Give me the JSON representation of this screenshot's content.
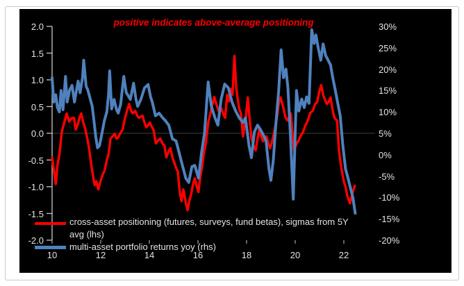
{
  "chart_data": {
    "type": "line",
    "title": "positive indicates above-average positioning",
    "title_color": "#ff0000",
    "background": "#000000",
    "legend_position": "bottom-left",
    "grid": "single horizontal gridline at left-axis 0.0",
    "x_axis": {
      "ticks": [
        10,
        12,
        14,
        16,
        18,
        20,
        22
      ],
      "range": [
        10,
        23.3
      ]
    },
    "left_axis": {
      "ticks": [
        2.0,
        1.5,
        1.0,
        0.5,
        0.0,
        -0.5,
        -1.0,
        -1.5,
        -2.0
      ],
      "range": [
        -2.0,
        2.0
      ],
      "unit": "sigma"
    },
    "right_axis": {
      "ticks": [
        30,
        25,
        20,
        15,
        10,
        5,
        0,
        -5,
        -10,
        -15,
        -20
      ],
      "range": [
        -20,
        30
      ],
      "unit": "%"
    },
    "series": [
      {
        "name": "cross-asset positioning (futures, surveys, fund betas), sigmas from 5Y avg (lhs)",
        "axis": "left",
        "color": "#ff0000",
        "points": [
          [
            10.0,
            -0.45
          ],
          [
            10.08,
            -0.72
          ],
          [
            10.15,
            -0.95
          ],
          [
            10.22,
            -0.6
          ],
          [
            10.3,
            -0.4
          ],
          [
            10.4,
            0.03
          ],
          [
            10.5,
            0.2
          ],
          [
            10.6,
            0.37
          ],
          [
            10.7,
            0.22
          ],
          [
            10.8,
            0.28
          ],
          [
            10.9,
            0.29
          ],
          [
            10.97,
            0.07
          ],
          [
            11.05,
            0.16
          ],
          [
            11.13,
            0.3
          ],
          [
            11.2,
            0.37
          ],
          [
            11.28,
            0.2
          ],
          [
            11.35,
            0.11
          ],
          [
            11.45,
            -0.1
          ],
          [
            11.52,
            -0.28
          ],
          [
            11.62,
            -0.62
          ],
          [
            11.75,
            -0.97
          ],
          [
            11.82,
            -0.9
          ],
          [
            11.9,
            -1.05
          ],
          [
            12.0,
            -0.88
          ],
          [
            12.1,
            -0.75
          ],
          [
            12.15,
            -0.71
          ],
          [
            12.25,
            -0.5
          ],
          [
            12.32,
            -0.4
          ],
          [
            12.4,
            -0.1
          ],
          [
            12.5,
            -0.05
          ],
          [
            12.57,
            -0.01
          ],
          [
            12.65,
            -0.1
          ],
          [
            12.72,
            -0.08
          ],
          [
            12.8,
            0.0
          ],
          [
            12.9,
            0.07
          ],
          [
            13.0,
            0.29
          ],
          [
            13.1,
            0.45
          ],
          [
            13.17,
            0.55
          ],
          [
            13.25,
            0.42
          ],
          [
            13.32,
            0.37
          ],
          [
            13.42,
            0.42
          ],
          [
            13.5,
            0.33
          ],
          [
            13.57,
            0.29
          ],
          [
            13.65,
            0.31
          ],
          [
            13.72,
            0.33
          ],
          [
            13.8,
            0.2
          ],
          [
            13.87,
            0.11
          ],
          [
            13.95,
            0.15
          ],
          [
            14.02,
            0.2
          ],
          [
            14.1,
            0.12
          ],
          [
            14.17,
            0.07
          ],
          [
            14.27,
            -0.19
          ],
          [
            14.37,
            -0.13
          ],
          [
            14.45,
            -0.1
          ],
          [
            14.55,
            -0.2
          ],
          [
            14.62,
            -0.23
          ],
          [
            14.7,
            -0.45
          ],
          [
            14.8,
            -0.33
          ],
          [
            14.87,
            -0.28
          ],
          [
            14.95,
            -0.45
          ],
          [
            15.02,
            -0.54
          ],
          [
            15.1,
            -0.65
          ],
          [
            15.17,
            -0.71
          ],
          [
            15.25,
            -1.1
          ],
          [
            15.32,
            -1.27
          ],
          [
            15.4,
            -1.05
          ],
          [
            15.5,
            -1.3
          ],
          [
            15.57,
            -1.44
          ],
          [
            15.65,
            -1.25
          ],
          [
            15.72,
            -1.14
          ],
          [
            15.8,
            -0.95
          ],
          [
            15.87,
            -0.84
          ],
          [
            15.95,
            -1.0
          ],
          [
            16.02,
            -1.1
          ],
          [
            16.1,
            -0.8
          ],
          [
            16.17,
            -0.62
          ],
          [
            16.25,
            -0.35
          ],
          [
            16.32,
            -0.2
          ],
          [
            16.42,
            0.2
          ],
          [
            16.5,
            0.35
          ],
          [
            16.57,
            0.5
          ],
          [
            16.67,
            0.68
          ],
          [
            16.75,
            0.55
          ],
          [
            16.85,
            0.42
          ],
          [
            16.95,
            0.47
          ],
          [
            17.05,
            0.35
          ],
          [
            17.12,
            0.29
          ],
          [
            17.2,
            0.72
          ],
          [
            17.27,
            0.6
          ],
          [
            17.35,
            0.83
          ],
          [
            17.42,
            0.72
          ],
          [
            17.5,
            1.45
          ],
          [
            17.57,
            0.9
          ],
          [
            17.62,
            0.68
          ],
          [
            17.7,
            0.45
          ],
          [
            17.77,
            0.37
          ],
          [
            17.85,
            -0.06
          ],
          [
            17.9,
            0.1
          ],
          [
            17.97,
            0.3
          ],
          [
            18.05,
            0.67
          ],
          [
            18.12,
            0.3
          ],
          [
            18.2,
            -0.1
          ],
          [
            18.3,
            -0.25
          ],
          [
            18.37,
            -0.32
          ],
          [
            18.45,
            -0.1
          ],
          [
            18.52,
            0.07
          ],
          [
            18.6,
            -0.05
          ],
          [
            18.67,
            -0.15
          ],
          [
            18.75,
            -0.1
          ],
          [
            18.82,
            -0.06
          ],
          [
            18.9,
            -0.2
          ],
          [
            18.97,
            -0.28
          ],
          [
            19.05,
            -0.15
          ],
          [
            19.15,
            0.05
          ],
          [
            19.25,
            0.3
          ],
          [
            19.32,
            0.55
          ],
          [
            19.4,
            0.67
          ],
          [
            19.5,
            0.5
          ],
          [
            19.6,
            0.3
          ],
          [
            19.67,
            0.24
          ],
          [
            19.75,
            0.3
          ],
          [
            19.82,
            0.37
          ],
          [
            19.9,
            -0.1
          ],
          [
            19.95,
            -0.32
          ],
          [
            20.05,
            -0.2
          ],
          [
            20.12,
            -0.15
          ],
          [
            20.22,
            -0.05
          ],
          [
            20.32,
            0.02
          ],
          [
            20.42,
            0.15
          ],
          [
            20.52,
            0.24
          ],
          [
            20.62,
            0.38
          ],
          [
            20.72,
            0.42
          ],
          [
            20.82,
            0.55
          ],
          [
            20.9,
            0.58
          ],
          [
            21.0,
            0.8
          ],
          [
            21.07,
            0.9
          ],
          [
            21.15,
            0.72
          ],
          [
            21.22,
            0.63
          ],
          [
            21.3,
            0.55
          ],
          [
            21.37,
            0.58
          ],
          [
            21.45,
            0.67
          ],
          [
            21.55,
            0.4
          ],
          [
            21.62,
            0.28
          ],
          [
            21.72,
            0.24
          ],
          [
            21.8,
            -0.32
          ],
          [
            21.9,
            -0.66
          ],
          [
            22.0,
            -0.9
          ],
          [
            22.07,
            -1.0
          ],
          [
            22.15,
            -1.18
          ],
          [
            22.25,
            -1.31
          ],
          [
            22.32,
            -1.18
          ],
          [
            22.37,
            -1.1
          ],
          [
            22.45,
            -0.98
          ]
        ]
      },
      {
        "name": "multi-asset portfolio returns yoy (rhs)",
        "axis": "right",
        "color": "#4f81bd",
        "points": [
          [
            10.0,
            18
          ],
          [
            10.07,
            12.3
          ],
          [
            10.15,
            14
          ],
          [
            10.22,
            11
          ],
          [
            10.3,
            10
          ],
          [
            10.37,
            15
          ],
          [
            10.45,
            10.5
          ],
          [
            10.55,
            18.3
          ],
          [
            10.62,
            12.3
          ],
          [
            10.72,
            15.1
          ],
          [
            10.82,
            16.2
          ],
          [
            10.92,
            12.3
          ],
          [
            11.0,
            15
          ],
          [
            11.07,
            17.2
          ],
          [
            11.15,
            14.5
          ],
          [
            11.25,
            18
          ],
          [
            11.3,
            22.1
          ],
          [
            11.4,
            16
          ],
          [
            11.47,
            15.1
          ],
          [
            11.55,
            13.4
          ],
          [
            11.65,
            11.3
          ],
          [
            11.72,
            8
          ],
          [
            11.8,
            4
          ],
          [
            11.87,
            1.6
          ],
          [
            11.95,
            2.1
          ],
          [
            12.05,
            5
          ],
          [
            12.15,
            8
          ],
          [
            12.25,
            10
          ],
          [
            12.32,
            14
          ],
          [
            12.37,
            19.6
          ],
          [
            12.45,
            10.7
          ],
          [
            12.55,
            12.9
          ],
          [
            12.65,
            10.5
          ],
          [
            12.72,
            9.7
          ],
          [
            12.82,
            11.8
          ],
          [
            12.95,
            18.3
          ],
          [
            13.05,
            14.5
          ],
          [
            13.12,
            13.9
          ],
          [
            13.22,
            12.9
          ],
          [
            13.35,
            16.7
          ],
          [
            13.45,
            13
          ],
          [
            13.52,
            11.3
          ],
          [
            13.65,
            12.9
          ],
          [
            13.8,
            15.6
          ],
          [
            13.95,
            16.4
          ],
          [
            14.05,
            13.5
          ],
          [
            14.12,
            12.3
          ],
          [
            14.25,
            9.1
          ],
          [
            14.4,
            9.7
          ],
          [
            14.55,
            8.6
          ],
          [
            14.65,
            8
          ],
          [
            14.8,
            6.9
          ],
          [
            14.95,
            3.7
          ],
          [
            15.1,
            3.2
          ],
          [
            15.2,
            1
          ],
          [
            15.35,
            -2.3
          ],
          [
            15.5,
            -5.5
          ],
          [
            15.62,
            -6.5
          ],
          [
            15.75,
            -2.8
          ],
          [
            15.87,
            -2.5
          ],
          [
            16.02,
            -5.5
          ],
          [
            16.15,
            0.5
          ],
          [
            16.27,
            5
          ],
          [
            16.42,
            17
          ],
          [
            16.55,
            11.3
          ],
          [
            16.7,
            8.6
          ],
          [
            16.82,
            6.9
          ],
          [
            16.95,
            12.9
          ],
          [
            17.1,
            16.5
          ],
          [
            17.25,
            15.6
          ],
          [
            17.4,
            12.3
          ],
          [
            17.55,
            10.2
          ],
          [
            17.7,
            8.6
          ],
          [
            17.85,
            7.5
          ],
          [
            17.95,
            8.6
          ],
          [
            18.1,
            2.1
          ],
          [
            18.2,
            -0.7
          ],
          [
            18.32,
            5.3
          ],
          [
            18.45,
            6.9
          ],
          [
            18.57,
            5.9
          ],
          [
            18.7,
            4.5
          ],
          [
            18.8,
            3.2
          ],
          [
            18.92,
            -3.3
          ],
          [
            19.0,
            -6
          ],
          [
            19.1,
            -1.2
          ],
          [
            19.2,
            6.9
          ],
          [
            19.32,
            15
          ],
          [
            19.42,
            24.5
          ],
          [
            19.52,
            18
          ],
          [
            19.62,
            20
          ],
          [
            19.7,
            15.6
          ],
          [
            19.8,
            4.8
          ],
          [
            19.92,
            -10.4
          ],
          [
            20.05,
            15
          ],
          [
            20.15,
            10.2
          ],
          [
            20.27,
            13
          ],
          [
            20.37,
            11
          ],
          [
            20.47,
            13.5
          ],
          [
            20.57,
            12
          ],
          [
            20.68,
            29.2
          ],
          [
            20.78,
            26
          ],
          [
            20.85,
            28
          ],
          [
            20.95,
            24.8
          ],
          [
            21.05,
            22.1
          ],
          [
            21.15,
            25.9
          ],
          [
            21.25,
            23.2
          ],
          [
            21.35,
            22.1
          ],
          [
            21.45,
            21
          ],
          [
            21.55,
            17.8
          ],
          [
            21.65,
            15.1
          ],
          [
            21.75,
            12
          ],
          [
            21.85,
            9.1
          ],
          [
            21.95,
            2.6
          ],
          [
            22.07,
            -3.3
          ],
          [
            22.17,
            -5.5
          ],
          [
            22.27,
            -7.7
          ],
          [
            22.37,
            -10
          ],
          [
            22.47,
            -13.7
          ]
        ]
      }
    ]
  },
  "legend": {
    "red_line1": "cross-asset positioning (futures, surveys, fund betas), sigmas from 5Y",
    "red_line2": "avg (lhs)",
    "blue_line1": "multi-asset portfolio returns yoy (rhs)"
  },
  "title": "positive indicates above-average positioning",
  "colors": {
    "positioning_line": "#ff0000",
    "returns_line": "#4f81bd",
    "chart_background": "#000000",
    "axis_text": "#e3e3e3",
    "title_text": "#ff0000"
  }
}
